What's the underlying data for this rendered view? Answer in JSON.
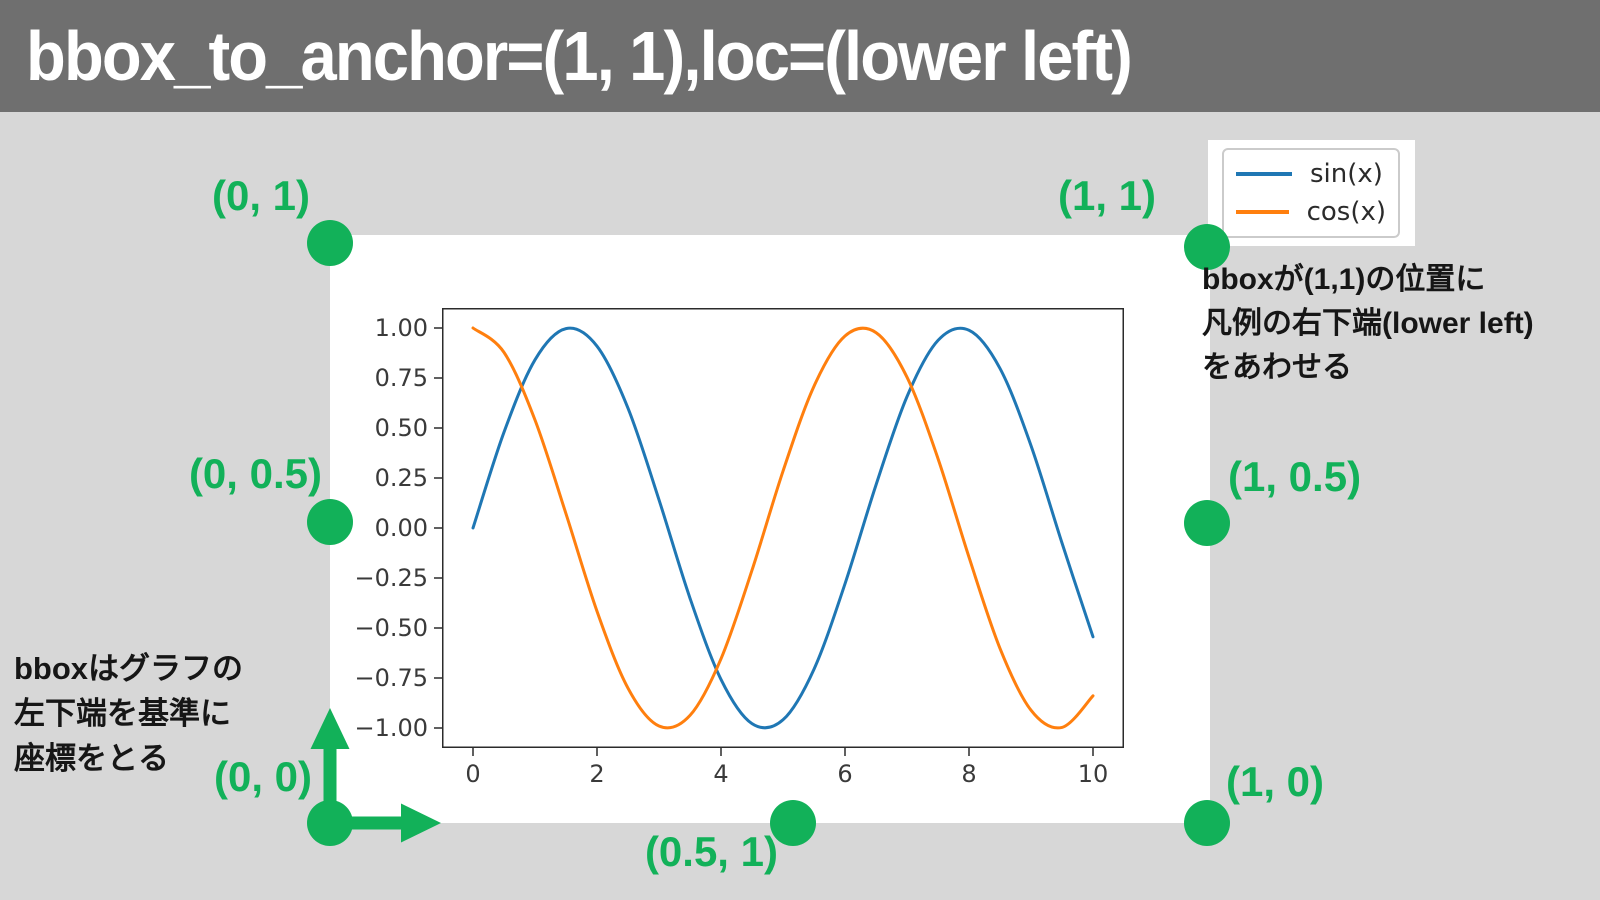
{
  "title_bar": {
    "text": "bbox_to_anchor=(1, 1),loc=(lower left)"
  },
  "colors": {
    "title_bar_bg": "#6f6f6f",
    "title_text": "#ffffff",
    "page_bg": "#d7d7d7",
    "figure_bg": "#ffffff",
    "accent_green": "#12b159",
    "spine": "#2b2b2b",
    "tick_text": "#3a3a3a",
    "legend_border": "#cbcbcb",
    "sin_line": "#1f77b4",
    "cos_line": "#ff7f0e"
  },
  "legend": {
    "items": [
      {
        "key": "sin",
        "label": "sin(x)",
        "color": "#1f77b4"
      },
      {
        "key": "cos",
        "label": "cos(x)",
        "color": "#ff7f0e"
      }
    ]
  },
  "anchors": {
    "top_left": "(0, 1)",
    "top_right": "(1, 1)",
    "mid_left": "(0, 0.5)",
    "mid_right": "(1, 0.5)",
    "bottom_left": "(0, 0)",
    "bottom_center": "(0.5, 1)",
    "bottom_right": "(1, 0)"
  },
  "notes": {
    "right_lines": [
      "bboxが(1,1)の位置に",
      "凡例の右下端(lower left)",
      "をあわせる"
    ],
    "left_lines": [
      "bboxはグラフの",
      "左下端を基準に",
      "座標をとる"
    ]
  },
  "chart_data": {
    "type": "line",
    "title": "",
    "xlabel": "",
    "ylabel": "",
    "xlim": [
      -0.5,
      10.5
    ],
    "ylim": [
      -1.1,
      1.1
    ],
    "x_ticks": [
      0,
      2,
      4,
      6,
      8,
      10
    ],
    "y_ticks": [
      1,
      0.75,
      0.5,
      0.25,
      0,
      -0.25,
      -0.5,
      -0.75,
      -1
    ],
    "grid": false,
    "legend_entries": [
      "sin(x)",
      "cos(x)"
    ],
    "legend_position": "bbox_to_anchor=(1,1), loc='lower left' (outside upper-right corner)",
    "x": [
      0,
      0.5,
      1,
      1.5,
      2,
      2.5,
      3,
      3.5,
      4,
      4.5,
      5,
      5.5,
      6,
      6.5,
      7,
      7.5,
      8,
      8.5,
      9,
      9.5,
      10
    ],
    "series": [
      {
        "name": "sin(x)",
        "key": "sin",
        "color": "#1f77b4",
        "y": [
          0,
          0.479,
          0.841,
          0.997,
          0.909,
          0.599,
          0.141,
          -0.351,
          -0.757,
          -0.978,
          -0.959,
          -0.706,
          -0.279,
          0.215,
          0.657,
          0.938,
          0.989,
          0.798,
          0.412,
          -0.075,
          -0.544
        ]
      },
      {
        "name": "cos(x)",
        "key": "cos",
        "color": "#ff7f0e",
        "y": [
          1,
          0.878,
          0.54,
          0.071,
          -0.416,
          -0.801,
          -0.99,
          -0.937,
          -0.654,
          -0.211,
          0.284,
          0.709,
          0.96,
          0.977,
          0.754,
          0.347,
          -0.146,
          -0.602,
          -0.911,
          -0.997,
          -0.839
        ]
      }
    ]
  }
}
